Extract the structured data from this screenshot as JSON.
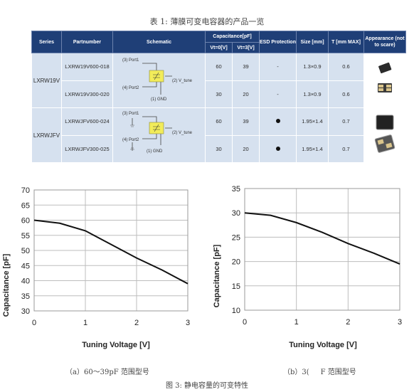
{
  "table_caption": "表 1: 薄膜可变电容器的产品一览",
  "table": {
    "headers": {
      "series": "Series",
      "partnumber": "Partnumber",
      "schematic": "Schematic",
      "capacitance": "Capacitance[pF]",
      "vt0": "Vt=0[V]",
      "vt3": "Vt=3[V]",
      "esd": "ESD Protection",
      "size": "Size [mm]",
      "t": "T [mm MAX]",
      "appearance": "Appearance (not to scare)"
    },
    "groups": [
      {
        "series": "LXRW19V",
        "schematic": {
          "port1": "(3) Port1",
          "port2": "(4) Port2",
          "vtune": "(2) V_tune",
          "gnd": "(1) GND"
        },
        "rows": [
          {
            "part": "LXRW19V600-018",
            "vt0": "60",
            "vt3": "39",
            "esd": "-",
            "size": "1.3×0.9",
            "t": "0.6"
          },
          {
            "part": "LXRW19V300-020",
            "vt0": "30",
            "vt3": "20",
            "esd": "-",
            "size": "1.3×0.9",
            "t": "0.6"
          }
        ]
      },
      {
        "series": "LXRWJFV",
        "schematic": {
          "port1": "(3) Port1",
          "port2": "(4) Port2",
          "vtune": "(2) V_tune",
          "gnd": "(1) GND"
        },
        "rows": [
          {
            "part": "LXRWJFV600-024",
            "vt0": "60",
            "vt3": "39",
            "esd": "dot",
            "size": "1.95×1.4",
            "t": "0.7"
          },
          {
            "part": "LXRWJFV300-025",
            "vt0": "30",
            "vt3": "20",
            "esd": "dot",
            "size": "1.95×1.4",
            "t": "0.7"
          }
        ]
      }
    ]
  },
  "chart_data": [
    {
      "type": "line",
      "xlabel": "Tuning Voltage [V]",
      "ylabel": "Capacitance [pF]",
      "xlim": [
        0,
        3
      ],
      "ylim": [
        30,
        70
      ],
      "xticks": [
        "0",
        "1",
        "2",
        "3"
      ],
      "yticks": [
        "30",
        "35",
        "40",
        "45",
        "50",
        "55",
        "60",
        "65",
        "70"
      ],
      "grid": true,
      "x": [
        0,
        0.5,
        1.0,
        1.5,
        2.0,
        2.5,
        3.0
      ],
      "y": [
        60,
        59,
        56.5,
        52,
        47.5,
        43.5,
        39
      ]
    },
    {
      "type": "line",
      "xlabel": "Tuning Voltage [V]",
      "ylabel": "Capacitance [pF]",
      "xlim": [
        0,
        3
      ],
      "ylim": [
        10,
        35
      ],
      "xticks": [
        "0",
        "1",
        "2",
        "3"
      ],
      "yticks": [
        "10",
        "15",
        "20",
        "25",
        "30",
        "35"
      ],
      "grid": true,
      "x": [
        0,
        0.5,
        1.0,
        1.5,
        2.0,
        2.5,
        3.0
      ],
      "y": [
        30,
        29.5,
        28,
        26,
        23.7,
        21.7,
        19.5
      ]
    }
  ],
  "sub_caption_a": "（a）60～39pF 范围型号",
  "sub_caption_b": "（b）3(",
  "sub_caption_b_tail": "F 范围型号",
  "figure_caption": "图 3: 静电容量的可变特性"
}
